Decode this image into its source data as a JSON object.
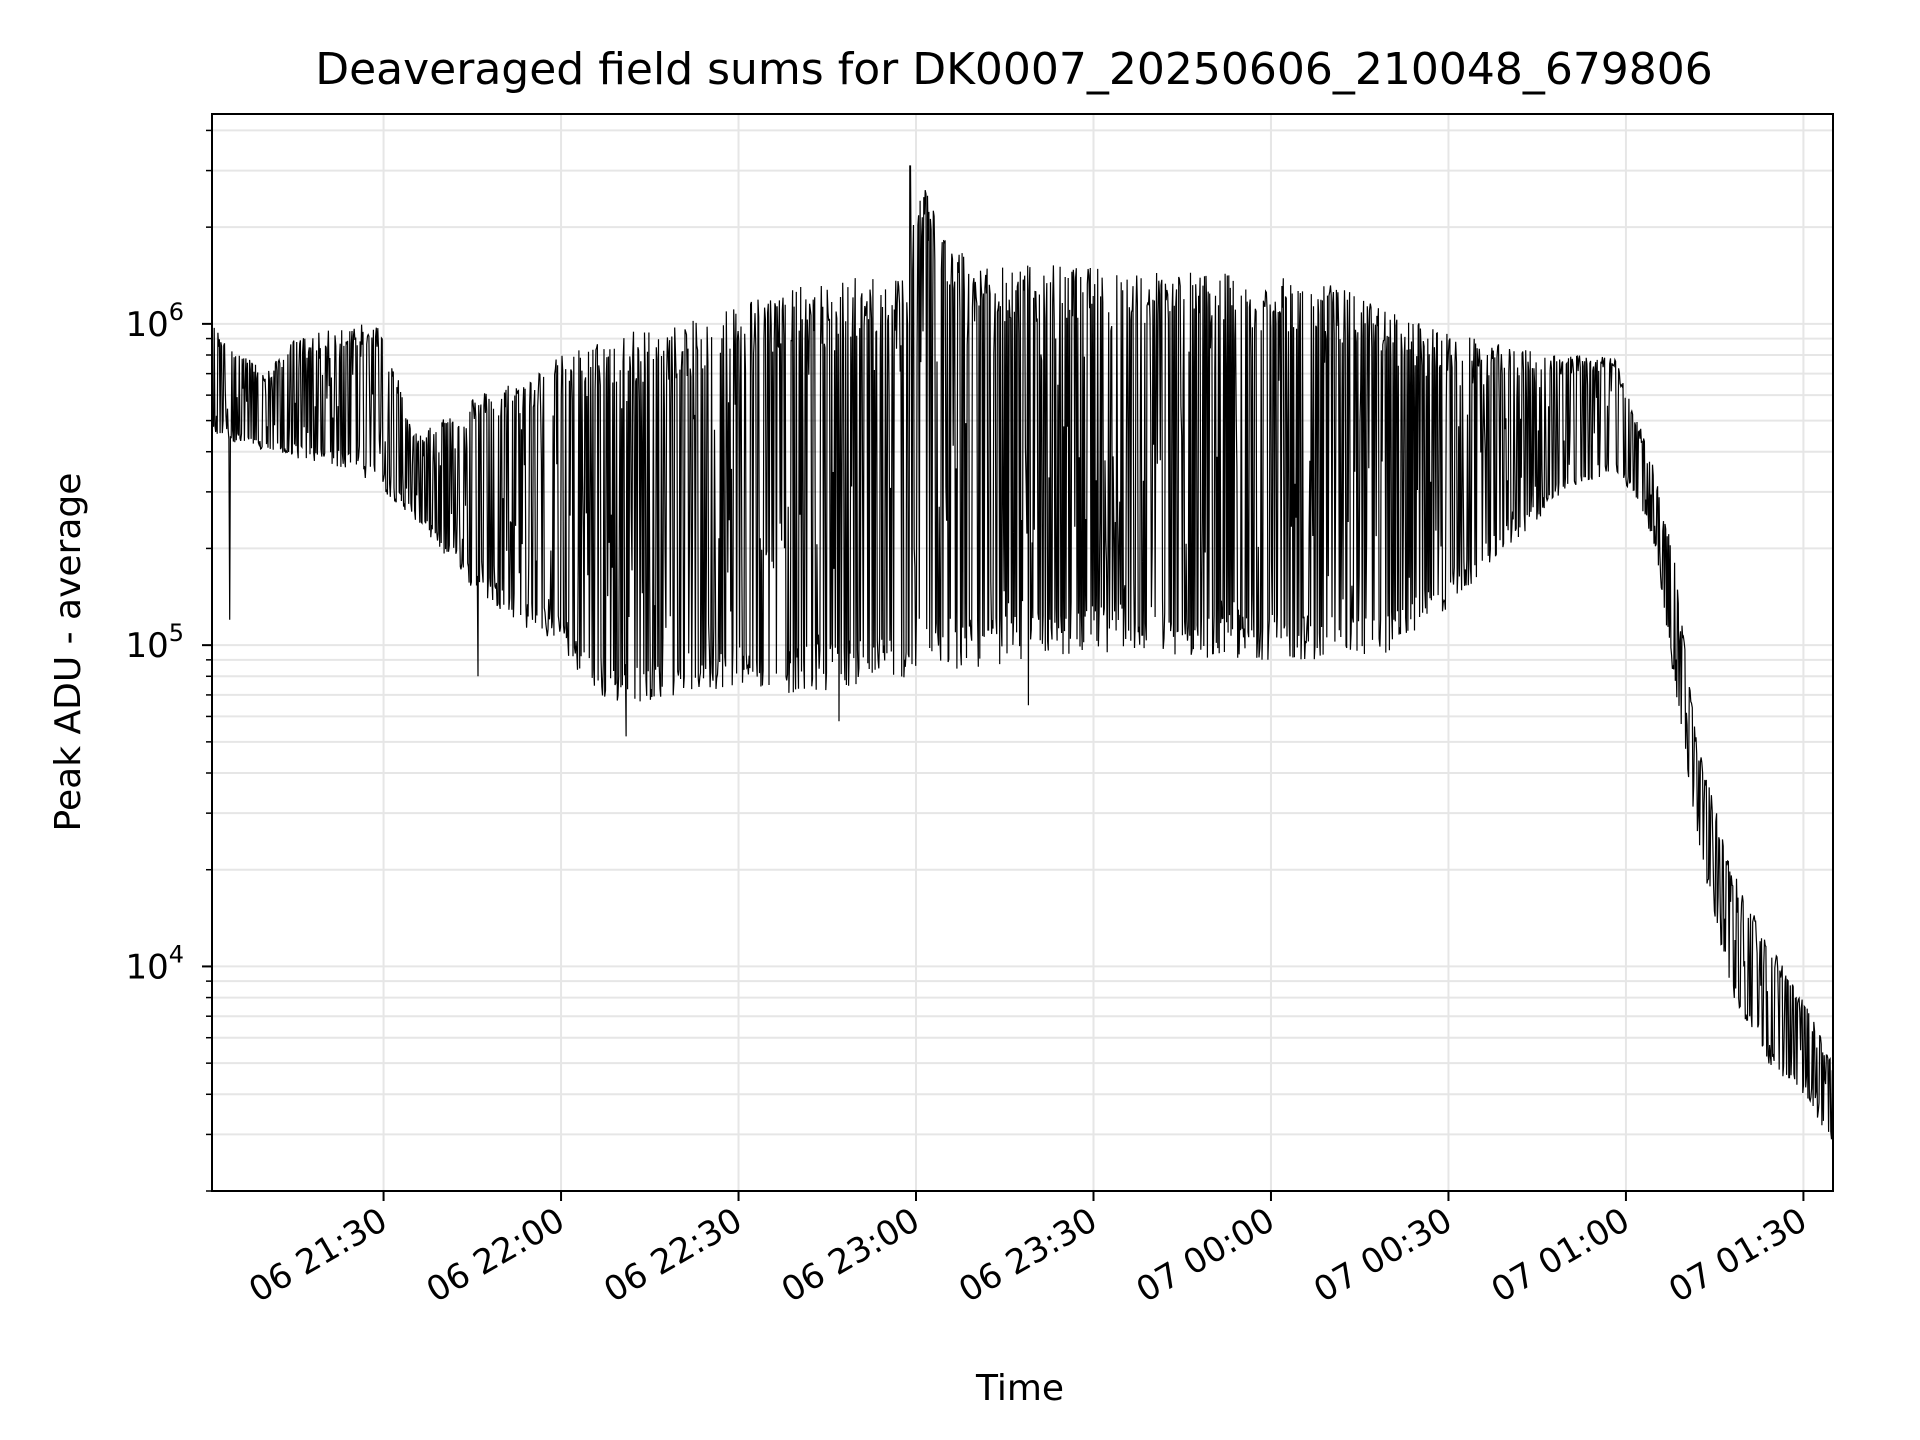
{
  "chart_data": {
    "type": "line",
    "title": "Deaveraged field sums for DK0007_20250606_210048_679806",
    "xlabel": "Time",
    "ylabel": "Peak ADU - average",
    "yscale": "log",
    "ylim": [
      2000,
      4500000
    ],
    "xlim": [
      "06 21:01",
      "07 01:35"
    ],
    "grid": true,
    "line_color": "#000000",
    "grid_color": "#e6e6e6",
    "x_ticks": [
      "06 21:30",
      "06 22:00",
      "06 22:30",
      "06 23:00",
      "06 23:30",
      "07 00:00",
      "07 00:30",
      "07 01:00",
      "07 01:30"
    ],
    "y_ticks": [
      {
        "value": 10000,
        "base": "10",
        "exp": "4"
      },
      {
        "value": 100000,
        "base": "10",
        "exp": "5"
      },
      {
        "value": 1000000,
        "base": "10",
        "exp": "6"
      }
    ],
    "series": [
      {
        "upper_envelope": {
          "x": [
            "06 21:01",
            "06 21:10",
            "06 21:15",
            "06 21:25",
            "06 21:30",
            "06 21:35",
            "06 21:45",
            "06 21:55",
            "06 22:00",
            "06 22:10",
            "06 22:20",
            "06 22:25",
            "06 22:30",
            "06 22:40",
            "06 22:50",
            "06 22:59",
            "06 23:00",
            "06 23:10",
            "06 23:20",
            "06 23:30",
            "06 23:40",
            "06 23:50",
            "07 00:00",
            "07 00:10",
            "07 00:20",
            "07 00:30",
            "07 00:40",
            "07 00:50",
            "07 00:58",
            "07 01:02",
            "07 01:05",
            "07 01:08",
            "07 01:12",
            "07 01:18",
            "07 01:24",
            "07 01:30",
            "07 01:35"
          ],
          "y": [
            1000000,
            700000,
            900000,
            1000000,
            1000000,
            450000,
            600000,
            700000,
            800000,
            950000,
            1000000,
            1050000,
            1200000,
            1300000,
            1400000,
            1450000,
            3100000,
            1500000,
            1550000,
            1500000,
            1500000,
            1450000,
            1400000,
            1350000,
            1100000,
            950000,
            850000,
            800000,
            800000,
            500000,
            350000,
            200000,
            50000,
            20000,
            12000,
            8000,
            5000
          ]
        },
        "lower_envelope": {
          "x": [
            "06 21:01",
            "06 21:10",
            "06 21:15",
            "06 21:25",
            "06 21:30",
            "06 21:35",
            "06 21:45",
            "06 21:55",
            "06 22:00",
            "06 22:05",
            "06 22:10",
            "06 22:20",
            "06 22:30",
            "06 22:40",
            "06 22:50",
            "06 23:00",
            "06 23:10",
            "06 23:20",
            "06 23:30",
            "06 23:40",
            "06 23:50",
            "07 00:00",
            "07 00:10",
            "07 00:20",
            "07 00:30",
            "07 00:40",
            "07 00:50",
            "07 00:58",
            "07 01:02",
            "07 01:05",
            "07 01:08",
            "07 01:12",
            "07 01:18",
            "07 01:24",
            "07 01:30",
            "07 01:35"
          ],
          "y": [
            450000,
            400000,
            380000,
            350000,
            300000,
            250000,
            150000,
            110000,
            100000,
            70000,
            65000,
            70000,
            75000,
            70000,
            75000,
            80000,
            85000,
            90000,
            95000,
            95000,
            90000,
            90000,
            90000,
            95000,
            130000,
            200000,
            300000,
            350000,
            280000,
            200000,
            80000,
            25000,
            8000,
            5000,
            4000,
            2800
          ]
        },
        "notable_points": [
          {
            "x": "06 21:04",
            "y": 120000
          },
          {
            "x": "06 21:46",
            "y": 80000
          },
          {
            "x": "06 22:11",
            "y": 52000
          },
          {
            "x": "06 22:47",
            "y": 58000
          },
          {
            "x": "06 22:59",
            "y": 3100000
          },
          {
            "x": "06 23:19",
            "y": 65000
          },
          {
            "x": "07 01:35",
            "y": 2700
          }
        ]
      }
    ]
  }
}
